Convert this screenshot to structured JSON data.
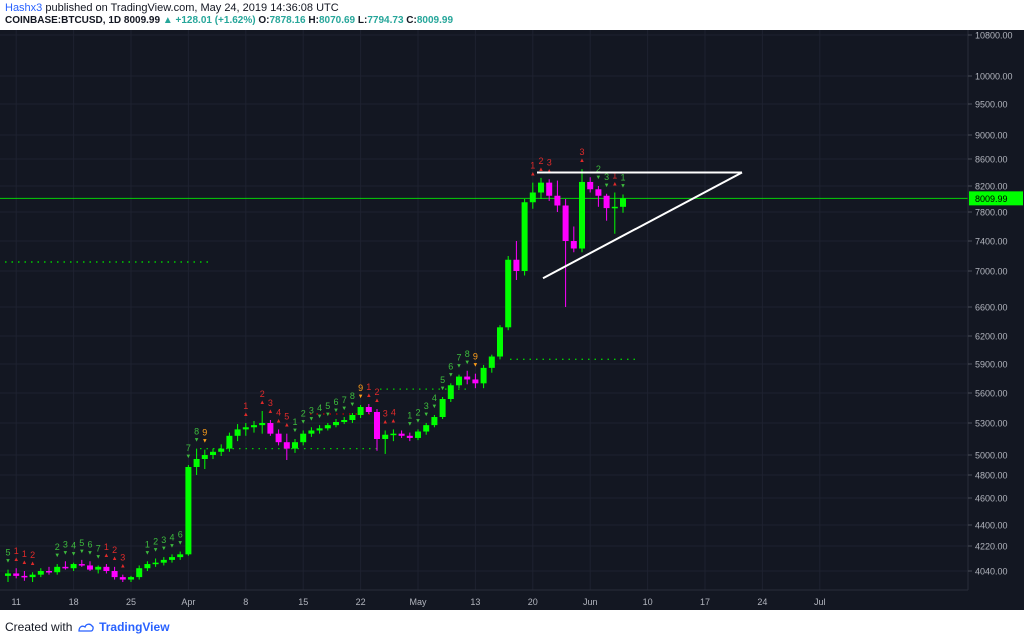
{
  "header": {
    "author": "Hashx3",
    "published": "published on TradingView.com, May 24, 2019 14:36:08 UTC",
    "symbol": "COINBASE:BTCUSD, 1D",
    "last": "8009.99",
    "change": "▲ +128.01 (+1.62%)",
    "o_label": "O:",
    "o_val": "7878.16",
    "h_label": "H:",
    "h_val": "8070.69",
    "l_label": "L:",
    "l_val": "7794.73",
    "c_label": "C:",
    "c_val": "8009.99"
  },
  "footer": {
    "created": "Created with",
    "brand": "TradingView",
    "logo_icon": "tradingview-logo-icon"
  },
  "colors": {
    "background": "#131722",
    "up": "#00ff00",
    "down": "#ff00ff",
    "grid": "#1e2230",
    "price_line": "#00ff00",
    "text": "#b2b5be"
  },
  "chart_data": {
    "type": "candlestick",
    "symbol": "COINBASE:BTCUSD",
    "interval": "1D",
    "price_labels": [
      "10800.00",
      "10000.00",
      "9500.00",
      "9000.00",
      "8600.00",
      "8200.00",
      "7800.00",
      "7400.00",
      "7000.00",
      "6600.00",
      "6200.00",
      "5900.00",
      "5600.00",
      "5300.00",
      "5000.00",
      "4800.00",
      "4600.00",
      "4400.00",
      "4220.00",
      "4040.00"
    ],
    "price_levels": [
      10800,
      10000,
      9500,
      9000,
      8600,
      8200,
      7800,
      7400,
      7000,
      6600,
      6200,
      5900,
      5600,
      5300,
      5000,
      4800,
      4600,
      4400,
      4220,
      4040
    ],
    "date_labels": [
      "11",
      "18",
      "25",
      "Apr",
      "8",
      "15",
      "22",
      "May",
      "13",
      "20",
      "Jun",
      "10",
      "17",
      "24",
      "Jul"
    ],
    "current_price_label": "8009.99",
    "current_price": 8009.99,
    "candles": [
      [
        4000,
        4050,
        3950,
        4020
      ],
      [
        4020,
        4060,
        3980,
        4000
      ],
      [
        4000,
        4040,
        3960,
        3990
      ],
      [
        3990,
        4030,
        3950,
        4010
      ],
      [
        4010,
        4060,
        3990,
        4040
      ],
      [
        4040,
        4070,
        4010,
        4030
      ],
      [
        4030,
        4090,
        4010,
        4070
      ],
      [
        4070,
        4110,
        4050,
        4060
      ],
      [
        4060,
        4100,
        4040,
        4090
      ],
      [
        4090,
        4120,
        4070,
        4080
      ],
      [
        4080,
        4110,
        4040,
        4050
      ],
      [
        4050,
        4080,
        4020,
        4070
      ],
      [
        4070,
        4090,
        4020,
        4040
      ],
      [
        4040,
        4070,
        3970,
        3990
      ],
      [
        3990,
        4010,
        3940,
        3970
      ],
      [
        3970,
        4000,
        3950,
        3990
      ],
      [
        3990,
        4080,
        3970,
        4060
      ],
      [
        4060,
        4110,
        4040,
        4090
      ],
      [
        4090,
        4130,
        4070,
        4100
      ],
      [
        4100,
        4140,
        4080,
        4120
      ],
      [
        4120,
        4160,
        4100,
        4140
      ],
      [
        4140,
        4180,
        4120,
        4160
      ],
      [
        4160,
        4900,
        4150,
        4880
      ],
      [
        4880,
        5060,
        4800,
        4960
      ],
      [
        4960,
        5050,
        4860,
        5000
      ],
      [
        5000,
        5060,
        4960,
        5030
      ],
      [
        5030,
        5100,
        4990,
        5060
      ],
      [
        5060,
        5210,
        5030,
        5180
      ],
      [
        5180,
        5290,
        5130,
        5240
      ],
      [
        5240,
        5300,
        5180,
        5260
      ],
      [
        5260,
        5320,
        5210,
        5280
      ],
      [
        5280,
        5420,
        5200,
        5300
      ],
      [
        5300,
        5330,
        5180,
        5200
      ],
      [
        5200,
        5240,
        5090,
        5120
      ],
      [
        5120,
        5200,
        4950,
        5060
      ],
      [
        5060,
        5150,
        5020,
        5120
      ],
      [
        5120,
        5230,
        5090,
        5200
      ],
      [
        5200,
        5260,
        5170,
        5230
      ],
      [
        5230,
        5280,
        5200,
        5250
      ],
      [
        5250,
        5300,
        5230,
        5280
      ],
      [
        5280,
        5340,
        5260,
        5310
      ],
      [
        5310,
        5360,
        5290,
        5330
      ],
      [
        5330,
        5400,
        5300,
        5380
      ],
      [
        5380,
        5480,
        5350,
        5460
      ],
      [
        5460,
        5490,
        5390,
        5410
      ],
      [
        5410,
        5440,
        5040,
        5150
      ],
      [
        5150,
        5230,
        5010,
        5190
      ],
      [
        5190,
        5240,
        5130,
        5200
      ],
      [
        5200,
        5230,
        5160,
        5180
      ],
      [
        5180,
        5210,
        5130,
        5160
      ],
      [
        5160,
        5240,
        5140,
        5220
      ],
      [
        5220,
        5300,
        5190,
        5280
      ],
      [
        5280,
        5380,
        5260,
        5360
      ],
      [
        5360,
        5560,
        5340,
        5540
      ],
      [
        5540,
        5700,
        5510,
        5680
      ],
      [
        5680,
        5790,
        5650,
        5770
      ],
      [
        5770,
        5830,
        5690,
        5740
      ],
      [
        5740,
        5800,
        5650,
        5700
      ],
      [
        5700,
        5890,
        5650,
        5860
      ],
      [
        5860,
        6000,
        5810,
        5980
      ],
      [
        5980,
        6350,
        5950,
        6320
      ],
      [
        6320,
        7200,
        6280,
        7150
      ],
      [
        7150,
        7400,
        6900,
        7000
      ],
      [
        7000,
        8000,
        6950,
        7950
      ],
      [
        7950,
        8250,
        7850,
        8100
      ],
      [
        8100,
        8320,
        8000,
        8250
      ],
      [
        8250,
        8300,
        7970,
        8050
      ],
      [
        8050,
        8280,
        7800,
        7900
      ],
      [
        7900,
        8000,
        6600,
        7400
      ],
      [
        7400,
        7600,
        7250,
        7300
      ],
      [
        7300,
        8450,
        7250,
        8260
      ],
      [
        8260,
        8330,
        8100,
        8150
      ],
      [
        8150,
        8200,
        7880,
        8050
      ],
      [
        8050,
        8080,
        7680,
        7860
      ],
      [
        7860,
        8100,
        7500,
        7880
      ],
      [
        7880,
        8070,
        7790,
        8010
      ]
    ],
    "triangle": {
      "top_line": [
        [
          "May 12",
          8400
        ],
        [
          "Jun 6",
          8400
        ]
      ],
      "bottom_line": [
        [
          "May 13",
          6920
        ],
        [
          "Jun 6",
          8400
        ]
      ]
    },
    "support_lines": [
      5950,
      7120
    ],
    "sequential_counts": [
      {
        "i": 0,
        "t": "5",
        "c": "up",
        "above": true
      },
      {
        "i": 1,
        "t": "1",
        "c": "dn",
        "above": true
      },
      {
        "i": 2,
        "t": "1",
        "c": "dn",
        "above": true
      },
      {
        "i": 3,
        "t": "2",
        "c": "dn",
        "above": true
      },
      {
        "i": 6,
        "t": "2",
        "c": "up",
        "above": true
      },
      {
        "i": 7,
        "t": "3",
        "c": "up",
        "above": true
      },
      {
        "i": 8,
        "t": "4",
        "c": "up",
        "above": true
      },
      {
        "i": 9,
        "t": "5",
        "c": "up",
        "above": true
      },
      {
        "i": 10,
        "t": "6",
        "c": "up",
        "above": true
      },
      {
        "i": 11,
        "t": "7",
        "c": "up",
        "above": true
      },
      {
        "i": 12,
        "t": "1",
        "c": "dn",
        "above": true
      },
      {
        "i": 13,
        "t": "2",
        "c": "dn",
        "above": true
      },
      {
        "i": 14,
        "t": "3",
        "c": "dn",
        "above": true
      },
      {
        "i": 17,
        "t": "1",
        "c": "up",
        "above": true
      },
      {
        "i": 18,
        "t": "2",
        "c": "up",
        "above": true
      },
      {
        "i": 19,
        "t": "3",
        "c": "up",
        "above": true
      },
      {
        "i": 20,
        "t": "4",
        "c": "up",
        "above": true
      },
      {
        "i": 21,
        "t": "6",
        "c": "up",
        "above": true
      },
      {
        "i": 22,
        "t": "7",
        "c": "up",
        "above": true
      },
      {
        "i": 23,
        "t": "8",
        "c": "up",
        "above": true
      },
      {
        "i": 24,
        "t": "9",
        "c": "nine",
        "above": true
      },
      {
        "i": 29,
        "t": "1",
        "c": "dn",
        "above": true
      },
      {
        "i": 31,
        "t": "2",
        "c": "dn",
        "above": true
      },
      {
        "i": 32,
        "t": "3",
        "c": "dn",
        "above": true
      },
      {
        "i": 33,
        "t": "4",
        "c": "dn",
        "above": true
      },
      {
        "i": 34,
        "t": "5",
        "c": "dn",
        "above": true
      },
      {
        "i": 35,
        "t": "1",
        "c": "up",
        "above": true
      },
      {
        "i": 36,
        "t": "2",
        "c": "up",
        "above": true
      },
      {
        "i": 37,
        "t": "3",
        "c": "up",
        "above": true
      },
      {
        "i": 38,
        "t": "4",
        "c": "up",
        "above": true
      },
      {
        "i": 39,
        "t": "5",
        "c": "up",
        "above": true
      },
      {
        "i": 40,
        "t": "6",
        "c": "up",
        "above": true
      },
      {
        "i": 41,
        "t": "7",
        "c": "up",
        "above": true
      },
      {
        "i": 42,
        "t": "8",
        "c": "up",
        "above": true
      },
      {
        "i": 43,
        "t": "9",
        "c": "nine",
        "above": true
      },
      {
        "i": 44,
        "t": "1",
        "c": "dn",
        "above": true
      },
      {
        "i": 45,
        "t": "2",
        "c": "dn",
        "above": true
      },
      {
        "i": 46,
        "t": "3",
        "c": "dn",
        "above": true
      },
      {
        "i": 47,
        "t": "4",
        "c": "dn",
        "above": true
      },
      {
        "i": 49,
        "t": "1",
        "c": "up",
        "above": true
      },
      {
        "i": 50,
        "t": "2",
        "c": "up",
        "above": true
      },
      {
        "i": 51,
        "t": "3",
        "c": "up",
        "above": true
      },
      {
        "i": 52,
        "t": "4",
        "c": "up",
        "above": true
      },
      {
        "i": 53,
        "t": "5",
        "c": "up",
        "above": true
      },
      {
        "i": 54,
        "t": "6",
        "c": "up",
        "above": true
      },
      {
        "i": 55,
        "t": "7",
        "c": "up",
        "above": true
      },
      {
        "i": 56,
        "t": "8",
        "c": "up",
        "above": true
      },
      {
        "i": 57,
        "t": "9",
        "c": "nine",
        "above": true
      },
      {
        "i": 64,
        "t": "1",
        "c": "dn",
        "above": true
      },
      {
        "i": 65,
        "t": "2",
        "c": "dn",
        "above": true
      },
      {
        "i": 66,
        "t": "3",
        "c": "dn",
        "above": true
      },
      {
        "i": 70,
        "t": "3",
        "c": "dn",
        "above": true
      },
      {
        "i": 72,
        "t": "2",
        "c": "up",
        "above": true
      },
      {
        "i": 73,
        "t": "3",
        "c": "up",
        "above": true
      },
      {
        "i": 74,
        "t": "1",
        "c": "dn",
        "above": true
      },
      {
        "i": 75,
        "t": "1",
        "c": "up",
        "above": true
      }
    ]
  }
}
